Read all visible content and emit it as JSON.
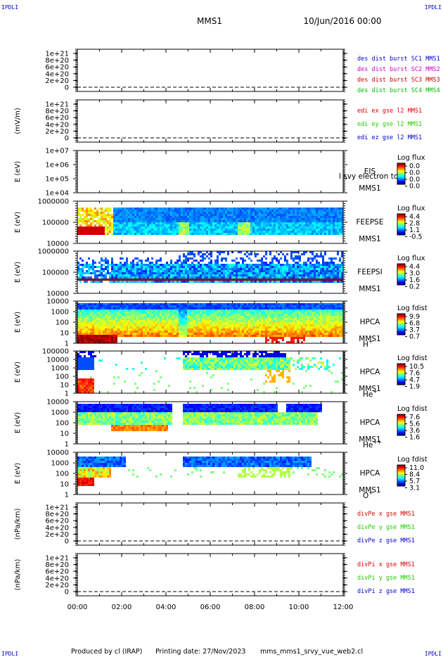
{
  "header": {
    "corner_tl": "IPDLI",
    "corner_tr": "IPDLI",
    "mission": "MMS1",
    "datetime": "10/Jun/2016 00:00"
  },
  "footer": {
    "corner_bl": "IPDLI",
    "corner_br": "IPDLI",
    "produced_by": "Produced by cl (IRAP)",
    "printing_date": "Printing date: 27/Nov/2023",
    "script": "mms_mms1_srvy_vue_web2.cl"
  },
  "colors": {
    "c_mms1": "#0000cc",
    "c_mms2": "#cc00cc",
    "c_mms3": "#cc0000",
    "c_mms4": "#00bb00",
    "c_x": "#dd0000",
    "c_y": "#22cc00",
    "c_z": "#0000cc"
  },
  "chart_data": {
    "type": "heatmap",
    "time_axis": {
      "ticks": [
        "00:00",
        "02:00",
        "04:00",
        "06:00",
        "08:00",
        "10:00",
        "12:00"
      ],
      "range_hours": [
        0,
        12
      ]
    },
    "panels": [
      {
        "id": "p1",
        "type": "line",
        "ylabel": "",
        "yticks": [
          "1e+21",
          "8e+20",
          "6e+20",
          "4e+20",
          "2e+20",
          "0"
        ],
        "legend": [
          {
            "text": "des dist burst SC1 MMS1",
            "color": "#0000cc"
          },
          {
            "text": "des dist burst SC2 MMS2",
            "color": "#cc00cc"
          },
          {
            "text": "des dist burst SC3 MMS3",
            "color": "#cc0000"
          },
          {
            "text": "des dist burst SC4 MMS4",
            "color": "#00bb00"
          }
        ]
      },
      {
        "id": "p2",
        "type": "line",
        "ylabel": "(mV/m)",
        "yticks": [
          "1e+21",
          "8e+20",
          "6e+20",
          "4e+20",
          "2e+20",
          "0"
        ],
        "legend": [
          {
            "text": "edi ex gse l2 MMS1",
            "color": "#dd0000"
          },
          {
            "text": "edi ey gse l2 MMS1",
            "color": "#22cc00"
          },
          {
            "text": "edi ez gse l2 MMS1",
            "color": "#0000cc"
          }
        ]
      },
      {
        "id": "p3",
        "type": "heatmap",
        "ylabel": "E (eV)",
        "yticks": [
          "1e+07",
          "1e+06",
          "1e+05",
          "1e+04"
        ],
        "instrument": [
          "EIS",
          "MMS1"
        ],
        "overlay": "l svy electron to",
        "cbar": {
          "title": "Log flux",
          "labels": [
            "0.0",
            "0.0",
            "0.0",
            "0.0"
          ]
        }
      },
      {
        "id": "p4",
        "type": "heatmap",
        "ylabel": "E (eV)",
        "yticks": [
          "1000000",
          "100000",
          "10000"
        ],
        "instrument": [
          "FEEPSE",
          "MMS1"
        ],
        "cbar": {
          "title": "Log flux",
          "labels": [
            "4.4",
            "2.8",
            "1.1",
            "-0.5"
          ]
        }
      },
      {
        "id": "p5",
        "type": "heatmap",
        "ylabel": "E (eV)",
        "yticks": [
          "1000000",
          "100000",
          "10000"
        ],
        "instrument": [
          "FEEPSI",
          "MMS1"
        ],
        "cbar": {
          "title": "Log flux",
          "labels": [
            "4.4",
            "3.0",
            "1.6",
            "0.2"
          ]
        }
      },
      {
        "id": "p6",
        "type": "heatmap",
        "ylabel": "E (eV)",
        "yticks": [
          "10000",
          "1000",
          "100",
          "10",
          "1"
        ],
        "instrument": [
          "HPCA",
          "MMS1"
        ],
        "species": "H",
        "charge": "+",
        "cbar": {
          "title": "Log fdist",
          "labels": [
            "9.9",
            "6.8",
            "3.7",
            "0.7"
          ]
        }
      },
      {
        "id": "p7",
        "type": "heatmap",
        "ylabel": "E (eV)",
        "yticks": [
          "100000",
          "10000",
          "1000",
          "100",
          "10",
          "1"
        ],
        "instrument": [
          "HPCA",
          "MMS1"
        ],
        "species": "He",
        "charge": "+",
        "cbar": {
          "title": "Log fdist",
          "labels": [
            "10.5",
            "7.6",
            "4.7",
            "1.9"
          ]
        }
      },
      {
        "id": "p8",
        "type": "heatmap",
        "ylabel": "E (eV)",
        "yticks": [
          "10000",
          "1000",
          "100",
          "10",
          "1"
        ],
        "instrument": [
          "HPCA",
          "MMS1"
        ],
        "species": "He",
        "charge": "++",
        "cbar": {
          "title": "Log fdist",
          "labels": [
            "7.6",
            "5.6",
            "3.6",
            "1.6"
          ]
        }
      },
      {
        "id": "p9",
        "type": "heatmap",
        "ylabel": "E (eV)",
        "yticks": [
          "10000",
          "1000",
          "100",
          "10",
          "1"
        ],
        "instrument": [
          "HPCA",
          "MMS1"
        ],
        "species": "O",
        "charge": "+",
        "cbar": {
          "title": "Log fdist",
          "labels": [
            "11.0",
            "8.4",
            "5.7",
            "3.1"
          ]
        }
      },
      {
        "id": "p10",
        "type": "line",
        "ylabel": "(nPa/km)",
        "yticks": [
          "1e+21",
          "8e+20",
          "6e+20",
          "4e+20",
          "2e+20",
          "0"
        ],
        "legend": [
          {
            "text": "divPe x gse MMS1",
            "color": "#dd0000"
          },
          {
            "text": "divPe y gse MMS1",
            "color": "#22cc00"
          },
          {
            "text": "divPe z gse MMS1",
            "color": "#0000cc"
          }
        ]
      },
      {
        "id": "p11",
        "type": "line",
        "ylabel": "(nPa/km)",
        "yticks": [
          "1e+21",
          "8e+20",
          "6e+20",
          "4e+20",
          "2e+20",
          "0"
        ],
        "legend": [
          {
            "text": "divPi x gse MMS1",
            "color": "#dd0000"
          },
          {
            "text": "divPi y gse MMS1",
            "color": "#22cc00"
          },
          {
            "text": "divPi z gse MMS1",
            "color": "#0000cc"
          }
        ]
      }
    ]
  }
}
